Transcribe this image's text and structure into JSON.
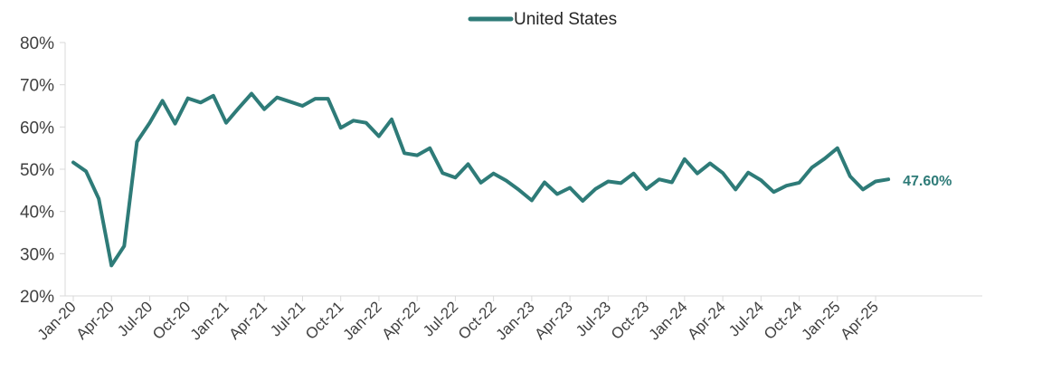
{
  "chart_data": {
    "type": "line",
    "title": "",
    "xlabel": "",
    "ylabel": "",
    "ylim": [
      20,
      80
    ],
    "ytick_labels": [
      "20%",
      "30%",
      "40%",
      "50%",
      "60%",
      "70%",
      "80%"
    ],
    "yticks": [
      20,
      30,
      40,
      50,
      60,
      70,
      80
    ],
    "grid": false,
    "legend": "top-center",
    "x": [
      "Jan-20",
      "Feb-20",
      "Mar-20",
      "Apr-20",
      "May-20",
      "Jun-20",
      "Jul-20",
      "Aug-20",
      "Sep-20",
      "Oct-20",
      "Nov-20",
      "Dec-20",
      "Jan-21",
      "Feb-21",
      "Mar-21",
      "Apr-21",
      "May-21",
      "Jun-21",
      "Jul-21",
      "Aug-21",
      "Sep-21",
      "Oct-21",
      "Nov-21",
      "Dec-21",
      "Jan-22",
      "Feb-22",
      "Mar-22",
      "Apr-22",
      "May-22",
      "Jun-22",
      "Jul-22",
      "Aug-22",
      "Sep-22",
      "Oct-22",
      "Nov-22",
      "Dec-22",
      "Jan-23",
      "Feb-23",
      "Mar-23",
      "Apr-23",
      "May-23",
      "Jun-23",
      "Jul-23",
      "Aug-23",
      "Sep-23",
      "Oct-23",
      "Nov-23",
      "Dec-23",
      "Jan-24",
      "Feb-24",
      "Mar-24",
      "Apr-24",
      "May-24",
      "Jun-24",
      "Jul-24",
      "Aug-24",
      "Sep-24",
      "Oct-24",
      "Nov-24",
      "Dec-24",
      "Jan-25",
      "Feb-25",
      "Mar-25",
      "Apr-25",
      "May-25"
    ],
    "x_tick_labels": [
      "Jan-20",
      "Apr-20",
      "Jul-20",
      "Oct-20",
      "Jan-21",
      "Apr-21",
      "Jul-21",
      "Oct-21",
      "Jan-22",
      "Apr-22",
      "Jul-22",
      "Oct-22",
      "Jan-23",
      "Apr-23",
      "Jul-23",
      "Oct-23",
      "Jan-24",
      "Apr-24",
      "Jul-24",
      "Oct-24",
      "Jan-25",
      "Apr-25"
    ],
    "series": [
      {
        "name": "United States",
        "color": "#2E7B78",
        "values": [
          51.6,
          49.5,
          43.0,
          27.2,
          31.8,
          56.5,
          61.0,
          66.2,
          60.8,
          66.8,
          65.8,
          67.4,
          61.0,
          64.5,
          67.9,
          64.2,
          67.0,
          66.0,
          65.0,
          66.7,
          66.7,
          59.8,
          61.5,
          61.0,
          57.8,
          61.8,
          53.8,
          53.3,
          55.0,
          49.1,
          48.0,
          51.2,
          46.8,
          49.0,
          47.3,
          45.1,
          42.6,
          46.9,
          44.1,
          45.6,
          42.5,
          45.3,
          47.1,
          46.7,
          49.0,
          45.3,
          47.6,
          46.9,
          52.4,
          49.0,
          51.4,
          49.1,
          45.2,
          49.2,
          47.4,
          44.6,
          46.1,
          46.8,
          50.4,
          52.5,
          55.0,
          48.3,
          45.2,
          47.1,
          47.6
        ]
      }
    ],
    "end_label": "47.60%"
  }
}
